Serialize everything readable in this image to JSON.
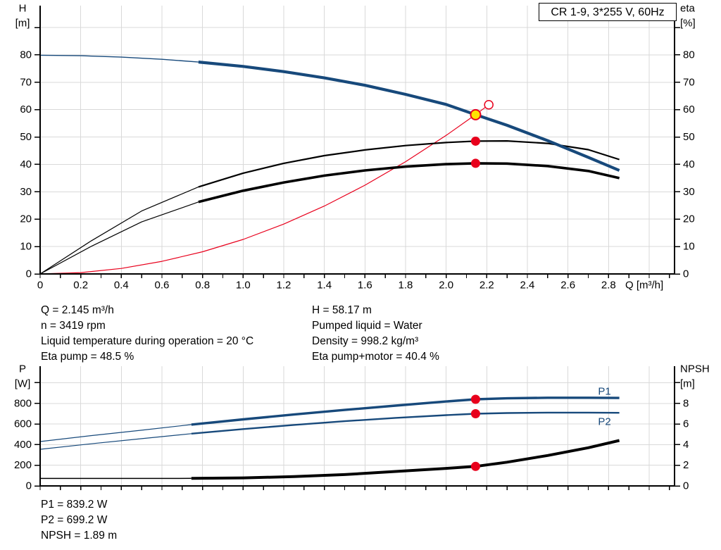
{
  "title_box": "CR 1-9, 3*255 V, 60Hz",
  "colors": {
    "blue": "#17497b",
    "red": "#e8001c",
    "yellow": "#ffe200",
    "grid": "#d9d9d9",
    "black": "#000000"
  },
  "marker_styles": {
    "dot": {
      "r": 6.5,
      "fill": "red"
    },
    "duty": {
      "r": 7,
      "fill": "yellow",
      "stroke": "red",
      "sw": 2
    },
    "open": {
      "r": 6,
      "fill": "#ffffff",
      "stroke": "red",
      "sw": 1.5
    }
  },
  "info": {
    "top_left": [
      "Q = 2.145 m³/h",
      "n = 3419 rpm",
      "Liquid temperature during operation = 20 °C",
      "Eta pump = 48.5 %"
    ],
    "top_right": [
      "H = 58.17 m",
      "Pumped liquid = Water",
      "Density = 998.2 kg/m³",
      "Eta pump+motor = 40.4 %"
    ],
    "bottom": [
      "P1 = 839.2 W",
      "P2 = 699.2 W",
      "NPSH = 1.89 m"
    ]
  },
  "chart_data": [
    {
      "type": "line",
      "title": "CR 1-9, 3*255 V, 60Hz",
      "x": {
        "min": 0,
        "max": 3.125,
        "minor_step": 0.1,
        "grid_step": 0.2,
        "title": "Q [m³/h]",
        "tick_labels": [
          [
            0,
            "0"
          ],
          [
            0.2,
            "0.2"
          ],
          [
            0.4,
            "0.4"
          ],
          [
            0.6,
            "0.6"
          ],
          [
            0.8,
            "0.8"
          ],
          [
            1.0,
            "1.0"
          ],
          [
            1.2,
            "1.2"
          ],
          [
            1.4,
            "1.4"
          ],
          [
            1.6,
            "1.6"
          ],
          [
            1.8,
            "1.8"
          ],
          [
            2.0,
            "2.0"
          ],
          [
            2.2,
            "2.2"
          ],
          [
            2.4,
            "2.4"
          ],
          [
            2.6,
            "2.6"
          ],
          [
            2.8,
            "2.8"
          ]
        ]
      },
      "left": {
        "min": 0,
        "max": 98,
        "grid_step": 10,
        "corner": [
          "H",
          "[m]"
        ],
        "extra_ticks": [
          90
        ],
        "tick_labels": [
          [
            0,
            "0"
          ],
          [
            10,
            "10"
          ],
          [
            20,
            "20"
          ],
          [
            30,
            "30"
          ],
          [
            40,
            "40"
          ],
          [
            50,
            "50"
          ],
          [
            60,
            "60"
          ],
          [
            70,
            "70"
          ],
          [
            80,
            "80"
          ]
        ]
      },
      "right": {
        "min": 0,
        "max": 98,
        "corner": [
          "eta",
          "[%]"
        ],
        "extra_ticks": [
          90
        ],
        "tick_labels": [
          [
            0,
            "0"
          ],
          [
            10,
            "10"
          ],
          [
            20,
            "20"
          ],
          [
            30,
            "30"
          ],
          [
            40,
            "40"
          ],
          [
            50,
            "50"
          ],
          [
            60,
            "60"
          ],
          [
            70,
            "70"
          ],
          [
            80,
            "80"
          ]
        ]
      },
      "series": [
        {
          "name": "system-curve",
          "color": "red",
          "axis": "left",
          "width": 1.2,
          "points": [
            [
              0,
              0
            ],
            [
              0.2,
              0.5
            ],
            [
              0.4,
              2.0
            ],
            [
              0.6,
              4.6
            ],
            [
              0.8,
              8.1
            ],
            [
              1.0,
              12.6
            ],
            [
              1.2,
              18.2
            ],
            [
              1.4,
              24.8
            ],
            [
              1.6,
              32.4
            ],
            [
              1.8,
              41.0
            ],
            [
              2.0,
              50.6
            ],
            [
              2.145,
              58.17
            ],
            [
              2.21,
              61.8
            ]
          ]
        },
        {
          "name": "eta-pump",
          "color": "black",
          "axis": "right",
          "thin_width": 1.2,
          "width": 2.2,
          "thick_from": 0.78,
          "points": [
            [
              0,
              0
            ],
            [
              0.25,
              12
            ],
            [
              0.5,
              23
            ],
            [
              0.78,
              31.8
            ],
            [
              1.0,
              36.8
            ],
            [
              1.2,
              40.4
            ],
            [
              1.4,
              43.2
            ],
            [
              1.6,
              45.3
            ],
            [
              1.8,
              46.9
            ],
            [
              2.0,
              48.0
            ],
            [
              2.145,
              48.5
            ],
            [
              2.3,
              48.6
            ],
            [
              2.5,
              47.7
            ],
            [
              2.7,
              45.4
            ],
            [
              2.853,
              41.8
            ]
          ]
        },
        {
          "name": "eta-pump-motor",
          "color": "black",
          "axis": "right",
          "thin_width": 1.2,
          "width": 3.6,
          "thick_from": 0.78,
          "points": [
            [
              0,
              0
            ],
            [
              0.25,
              10
            ],
            [
              0.5,
              19
            ],
            [
              0.78,
              26.3
            ],
            [
              1.0,
              30.4
            ],
            [
              1.2,
              33.4
            ],
            [
              1.4,
              35.9
            ],
            [
              1.6,
              37.8
            ],
            [
              1.8,
              39.2
            ],
            [
              2.0,
              40.1
            ],
            [
              2.145,
              40.4
            ],
            [
              2.3,
              40.3
            ],
            [
              2.5,
              39.4
            ],
            [
              2.7,
              37.6
            ],
            [
              2.853,
              35.0
            ]
          ]
        },
        {
          "name": "pump-head",
          "color": "blue",
          "axis": "left",
          "thin_width": 1.4,
          "width": 4.2,
          "thick_from": 0.78,
          "points": [
            [
              0,
              79.9
            ],
            [
              0.2,
              79.7
            ],
            [
              0.4,
              79.2
            ],
            [
              0.6,
              78.4
            ],
            [
              0.78,
              77.4
            ],
            [
              1.0,
              75.8
            ],
            [
              1.2,
              73.9
            ],
            [
              1.4,
              71.6
            ],
            [
              1.6,
              68.9
            ],
            [
              1.8,
              65.6
            ],
            [
              2.0,
              61.9
            ],
            [
              2.145,
              58.17
            ],
            [
              2.3,
              54.3
            ],
            [
              2.5,
              48.7
            ],
            [
              2.7,
              42.6
            ],
            [
              2.853,
              37.8
            ]
          ]
        }
      ],
      "markers": [
        {
          "q": 2.21,
          "v": 61.8,
          "axis": "left",
          "style": "open"
        },
        {
          "q": 2.145,
          "v": 58.17,
          "axis": "left",
          "style": "duty"
        },
        {
          "q": 2.145,
          "v": 48.5,
          "axis": "right",
          "style": "dot"
        },
        {
          "q": 2.145,
          "v": 40.4,
          "axis": "right",
          "style": "dot"
        }
      ]
    },
    {
      "type": "line",
      "x": {
        "min": 0,
        "max": 3.125,
        "minor_step": 0.1,
        "grid_step": 0.2,
        "tick_labels": []
      },
      "left": {
        "min": 0,
        "max": 1160,
        "grid_step": 200,
        "corner": [
          "P",
          "[W]"
        ],
        "extra_ticks": [
          1000
        ],
        "tick_labels": [
          [
            0,
            "0"
          ],
          [
            200,
            "200"
          ],
          [
            400,
            "400"
          ],
          [
            600,
            "600"
          ],
          [
            800,
            "800"
          ]
        ]
      },
      "right": {
        "min": 0,
        "max": 11.6,
        "corner": [
          "NPSH",
          "[m]"
        ],
        "extra_ticks": [
          10
        ],
        "tick_labels": [
          [
            0,
            "0"
          ],
          [
            2,
            "2"
          ],
          [
            4,
            "4"
          ],
          [
            6,
            "6"
          ],
          [
            8,
            "8"
          ]
        ]
      },
      "series": [
        {
          "name": "p1",
          "color": "blue",
          "axis": "left",
          "thin_width": 1.2,
          "width": 3.4,
          "thick_from": 0.745,
          "label": {
            "text": "P1",
            "q": 2.78,
            "v": 915
          },
          "points": [
            [
              0,
              430
            ],
            [
              0.25,
              487
            ],
            [
              0.5,
              540
            ],
            [
              0.745,
              594
            ],
            [
              1.0,
              645
            ],
            [
              1.25,
              692
            ],
            [
              1.5,
              736
            ],
            [
              1.75,
              778
            ],
            [
              2.0,
              818
            ],
            [
              2.145,
              839.2
            ],
            [
              2.3,
              849
            ],
            [
              2.5,
              854
            ],
            [
              2.7,
              854
            ],
            [
              2.853,
              852
            ]
          ]
        },
        {
          "name": "p2",
          "color": "blue",
          "axis": "left",
          "thin_width": 1.2,
          "width": 2.4,
          "thick_from": 0.745,
          "label": {
            "text": "P2",
            "q": 2.78,
            "v": 620
          },
          "points": [
            [
              0,
              355
            ],
            [
              0.25,
              408
            ],
            [
              0.5,
              458
            ],
            [
              0.745,
              506
            ],
            [
              1.0,
              551
            ],
            [
              1.25,
              591
            ],
            [
              1.5,
              627
            ],
            [
              1.75,
              659
            ],
            [
              2.0,
              686
            ],
            [
              2.145,
              699.2
            ],
            [
              2.3,
              706
            ],
            [
              2.5,
              710
            ],
            [
              2.7,
              710
            ],
            [
              2.853,
              708
            ]
          ]
        },
        {
          "name": "npsh",
          "color": "black",
          "axis": "right",
          "thin_width": 1.5,
          "width": 4,
          "thick_from": 0.745,
          "points": [
            [
              0,
              0.72
            ],
            [
              0.5,
              0.72
            ],
            [
              0.745,
              0.73
            ],
            [
              1.0,
              0.78
            ],
            [
              1.25,
              0.9
            ],
            [
              1.5,
              1.1
            ],
            [
              1.75,
              1.4
            ],
            [
              2.0,
              1.7
            ],
            [
              2.145,
              1.89
            ],
            [
              2.3,
              2.3
            ],
            [
              2.5,
              2.95
            ],
            [
              2.7,
              3.7
            ],
            [
              2.853,
              4.4
            ]
          ]
        }
      ],
      "markers": [
        {
          "q": 2.145,
          "v": 839.2,
          "axis": "left",
          "style": "dot"
        },
        {
          "q": 2.145,
          "v": 699.2,
          "axis": "left",
          "style": "dot"
        },
        {
          "q": 2.145,
          "v": 1.89,
          "axis": "right",
          "style": "dot"
        }
      ]
    }
  ]
}
